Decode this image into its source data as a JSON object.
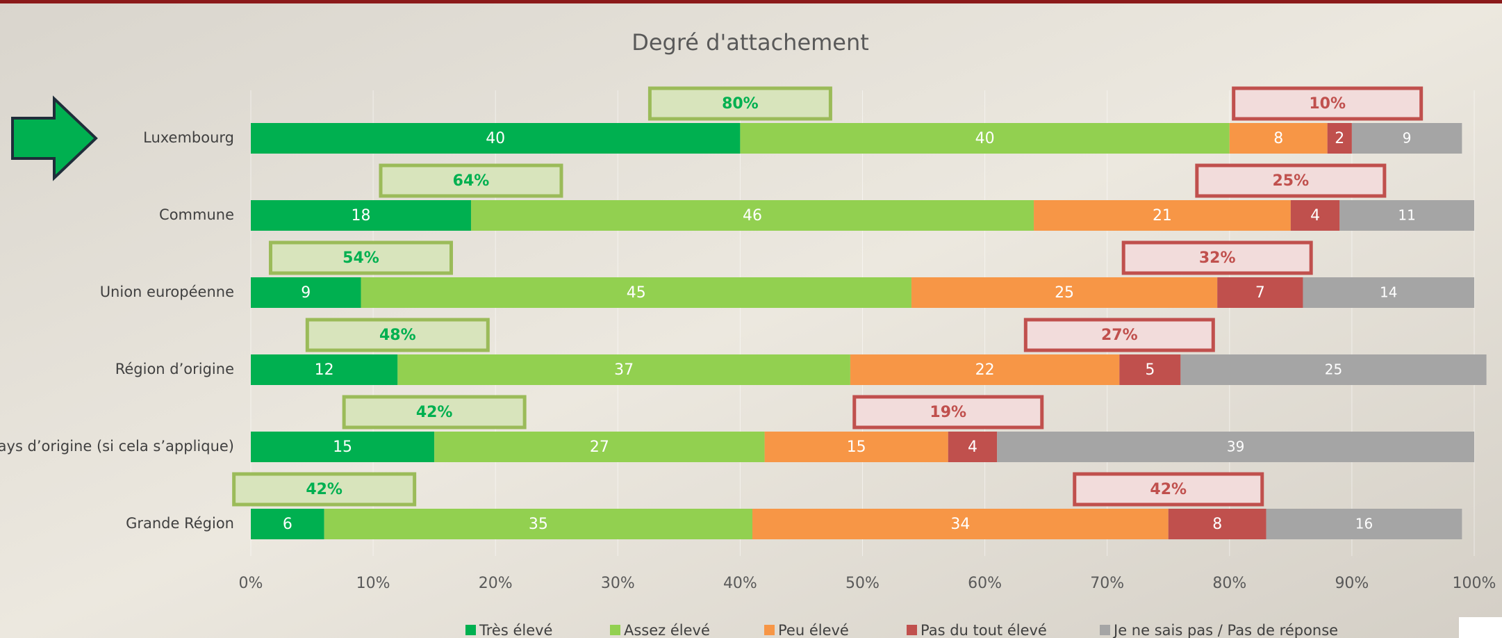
{
  "chart_data": {
    "type": "stacked-bar-horizontal",
    "title": "Degré d'attachement",
    "categories": [
      "Luxembourg",
      "Commune",
      "Union européenne",
      "Région d’origine",
      "Pays d’origine (si cela s’applique)",
      "Grande Région"
    ],
    "series": [
      {
        "name": "Très élevé",
        "color": "#00b050",
        "values": [
          40,
          18,
          9,
          12,
          15,
          6
        ]
      },
      {
        "name": "Assez élevé",
        "color": "#92d050",
        "values": [
          40,
          46,
          45,
          37,
          27,
          35
        ]
      },
      {
        "name": "Peu élevé",
        "color": "#f79646",
        "values": [
          8,
          21,
          25,
          22,
          15,
          34
        ]
      },
      {
        "name": "Pas du tout élevé",
        "color": "#c0504d",
        "values": [
          2,
          4,
          7,
          5,
          4,
          8
        ]
      },
      {
        "name": "Je ne sais pas / Pas de réponse",
        "color": "#a5a5a5",
        "values": [
          9,
          11,
          14,
          25,
          39,
          16
        ]
      }
    ],
    "annotations": {
      "positive": {
        "color": "#00b050",
        "values": [
          80,
          64,
          54,
          48,
          42,
          42
        ],
        "value_labels": [
          "80%",
          "64%",
          "54%",
          "48%",
          "42%",
          "42%"
        ]
      },
      "negative": {
        "color": "#c0504d",
        "values": [
          10,
          25,
          32,
          27,
          19,
          42
        ],
        "value_labels": [
          "10%",
          "25%",
          "32%",
          "27%",
          "19%",
          "42%"
        ]
      }
    },
    "xlim": [
      0,
      100
    ],
    "xticks": [
      {
        "value": 0,
        "label": "0%"
      },
      {
        "value": 10,
        "label": "10%"
      },
      {
        "value": 20,
        "label": "20%"
      },
      {
        "value": 30,
        "label": "30%"
      },
      {
        "value": 40,
        "label": "40%"
      },
      {
        "value": 50,
        "label": "50%"
      },
      {
        "value": 60,
        "label": "60%"
      },
      {
        "value": 70,
        "label": "70%"
      },
      {
        "value": 80,
        "label": "80%"
      },
      {
        "value": 90,
        "label": "90%"
      },
      {
        "value": 100,
        "label": "100%"
      }
    ],
    "grid": true
  }
}
